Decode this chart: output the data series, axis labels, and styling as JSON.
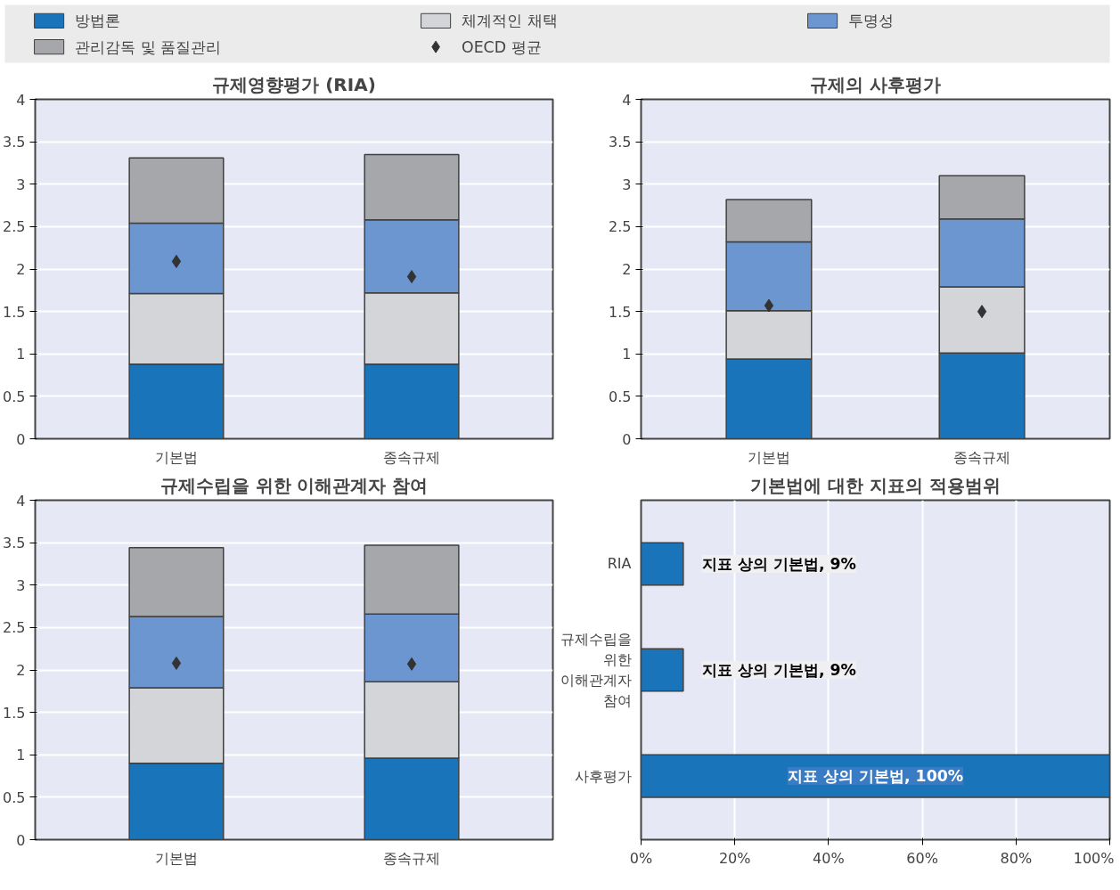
{
  "chart_data": [
    {
      "type": "bar",
      "title": "규제영향평가 (RIA)",
      "stacked": true,
      "legend": "top",
      "grid": "y",
      "marker": "diamond",
      "categories": [
        "기본법",
        "종속규제"
      ],
      "ylim": [
        0,
        4
      ],
      "yticks": [
        0,
        0.5,
        1,
        1.5,
        2,
        2.5,
        3,
        3.5,
        4
      ],
      "series": [
        {
          "name": "방법론",
          "color": "#1a74ba",
          "values": [
            0.88,
            0.88
          ]
        },
        {
          "name": "체계적인 채택",
          "color": "#d4d5d9",
          "values": [
            0.83,
            0.84
          ]
        },
        {
          "name": "투명성",
          "color": "#6b96d0",
          "values": [
            0.83,
            0.86
          ]
        },
        {
          "name": "관리감독 및 품질관리",
          "color": "#a6a7ab",
          "values": [
            0.77,
            0.77
          ]
        },
        {
          "name": "OECD 평균",
          "type": "scatter",
          "color": "#333333",
          "values": [
            2.09,
            1.91
          ]
        }
      ]
    },
    {
      "type": "bar",
      "title": "규제의 사후평가",
      "stacked": true,
      "grid": "y",
      "marker": "diamond",
      "categories": [
        "기본법",
        "종속규제"
      ],
      "ylim": [
        0,
        4
      ],
      "yticks": [
        0,
        0.5,
        1,
        1.5,
        2,
        2.5,
        3,
        3.5,
        4
      ],
      "series": [
        {
          "color": "#1a74ba",
          "values": [
            0.94,
            1.01
          ]
        },
        {
          "color": "#d4d5d9",
          "values": [
            0.57,
            0.78
          ]
        },
        {
          "color": "#6b96d0",
          "values": [
            0.81,
            0.8
          ]
        },
        {
          "color": "#a6a7ab",
          "values": [
            0.5,
            0.51
          ]
        },
        {
          "type": "scatter",
          "color": "#333333",
          "values": [
            1.57,
            1.5
          ]
        }
      ]
    },
    {
      "type": "bar",
      "title": "규제수립을 위한 이해관계자 참여",
      "stacked": true,
      "grid": "y",
      "marker": "diamond",
      "categories": [
        "기본법",
        "종속규제"
      ],
      "ylim": [
        0,
        4
      ],
      "yticks": [
        0,
        0.5,
        1,
        1.5,
        2,
        2.5,
        3,
        3.5,
        4
      ],
      "series": [
        {
          "color": "#1a74ba",
          "values": [
            0.9,
            0.96
          ]
        },
        {
          "color": "#d4d5d9",
          "values": [
            0.89,
            0.9
          ]
        },
        {
          "color": "#6b96d0",
          "values": [
            0.84,
            0.8
          ]
        },
        {
          "color": "#a6a7ab",
          "values": [
            0.81,
            0.81
          ]
        },
        {
          "type": "scatter",
          "color": "#333333",
          "values": [
            2.08,
            2.07
          ]
        }
      ]
    },
    {
      "type": "bar",
      "title": "기본법에 대한 지표의 적용범위",
      "orientation": "horizontal",
      "grid": "x",
      "categories": [
        "RIA",
        "규제수립을 위한 이해관계자 참여",
        "사후평가"
      ],
      "xlim": [
        0,
        100
      ],
      "xticks": [
        {
          "value": 0,
          "label": "0%"
        },
        {
          "value": 20,
          "label": "20%"
        },
        {
          "value": 40,
          "label": "40%"
        },
        {
          "value": 60,
          "label": "60%"
        },
        {
          "value": 80,
          "label": "80%"
        },
        {
          "value": 100,
          "label": "100%"
        }
      ],
      "color": "#1a74ba",
      "values": [
        9,
        9,
        100
      ],
      "value_labels": [
        "지표 상의 기본법, 9%",
        "지표 상의 기본법, 9%",
        "지표 상의 기본법, 100%"
      ]
    }
  ]
}
